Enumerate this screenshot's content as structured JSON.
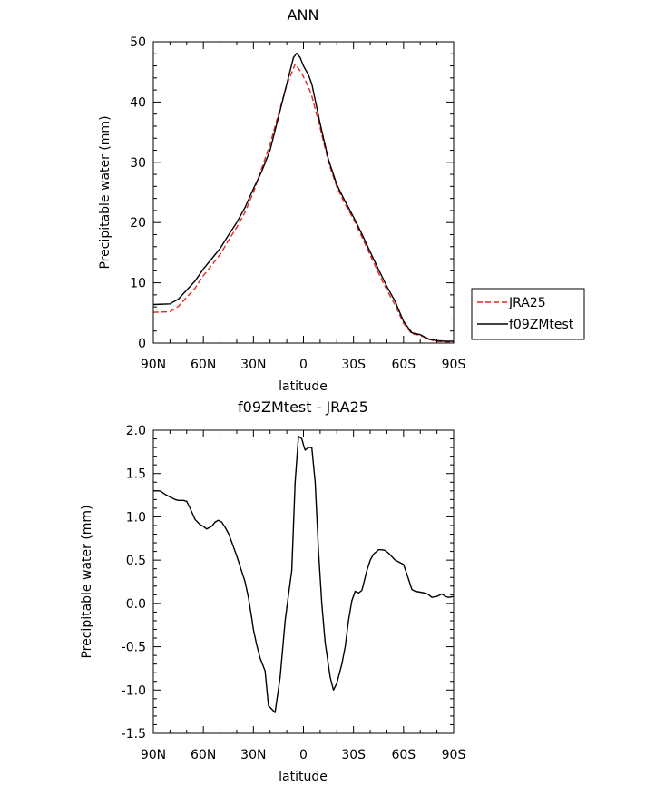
{
  "chart_data": [
    {
      "type": "line",
      "title": "ANN",
      "xlabel": "latitude",
      "ylabel": "Precipitable water (mm)",
      "x_ticks": [
        90,
        60,
        30,
        0,
        -30,
        -60,
        -90
      ],
      "x_tick_labels": [
        "90N",
        "60N",
        "30N",
        "0",
        "30S",
        "60S",
        "90S"
      ],
      "xlim": [
        90,
        -90
      ],
      "ylim": [
        0,
        50
      ],
      "y_ticks": [
        0,
        10,
        20,
        30,
        40,
        50
      ],
      "y_tick_labels": [
        "0",
        "10",
        "20",
        "30",
        "40",
        "50"
      ],
      "legend_position": "right",
      "series": [
        {
          "name": "JRA25",
          "color": "#e8261f",
          "dash": "dashed",
          "x": [
            90,
            80,
            75,
            70,
            65,
            60,
            55,
            50,
            45,
            40,
            35,
            30,
            25,
            20,
            15,
            10,
            5,
            2,
            0,
            -3,
            -5,
            -10,
            -15,
            -20,
            -25,
            -30,
            -35,
            -40,
            -45,
            -50,
            -55,
            -60,
            -65,
            -70,
            -75,
            -80,
            -85,
            -88,
            -90
          ],
          "y": [
            5.1,
            5.2,
            6.1,
            7.6,
            9.1,
            11.2,
            12.9,
            14.7,
            17.0,
            19.2,
            21.7,
            25.0,
            29.0,
            33.0,
            38.0,
            42.8,
            46.3,
            45.2,
            44.2,
            42.5,
            41.0,
            35.7,
            30.0,
            25.9,
            23.0,
            20.6,
            17.6,
            14.6,
            11.6,
            8.8,
            6.3,
            3.3,
            1.5,
            1.3,
            0.6,
            0.3,
            0.2,
            0.2,
            0.2
          ]
        },
        {
          "name": "f09ZMtest",
          "color": "#000000",
          "dash": "solid",
          "x": [
            90,
            80,
            75,
            70,
            65,
            60,
            55,
            50,
            45,
            40,
            35,
            30,
            25,
            20,
            15,
            10,
            6,
            4,
            2,
            0,
            -3,
            -5,
            -10,
            -15,
            -20,
            -25,
            -30,
            -35,
            -40,
            -45,
            -50,
            -55,
            -60,
            -65,
            -70,
            -75,
            -80,
            -85,
            -88,
            -90
          ],
          "y": [
            6.4,
            6.5,
            7.3,
            8.8,
            10.3,
            12.3,
            14.0,
            15.7,
            17.9,
            20.0,
            22.5,
            25.6,
            28.5,
            32.0,
            37.5,
            43.0,
            47.4,
            48.1,
            47.4,
            46.0,
            44.5,
            43.0,
            36.4,
            30.4,
            26.3,
            23.5,
            20.9,
            18.1,
            15.1,
            12.2,
            9.4,
            6.9,
            3.6,
            1.7,
            1.4,
            0.7,
            0.4,
            0.3,
            0.3,
            0.3
          ]
        }
      ]
    },
    {
      "type": "line",
      "title": "f09ZMtest - JRA25",
      "xlabel": "latitude",
      "ylabel": "Precipitable water (mm)",
      "x_ticks": [
        90,
        60,
        30,
        0,
        -30,
        -60,
        -90
      ],
      "x_tick_labels": [
        "90N",
        "60N",
        "30N",
        "0",
        "30S",
        "60S",
        "90S"
      ],
      "xlim": [
        90,
        -90
      ],
      "ylim": [
        -1.5,
        2.0
      ],
      "y_ticks": [
        -1.5,
        -1.0,
        -0.5,
        0.0,
        0.5,
        1.0,
        1.5,
        2.0
      ],
      "y_tick_labels": [
        "-1.5",
        "-1.0",
        "-0.5",
        "0.0",
        "0.5",
        "1.0",
        "1.5",
        "2.0"
      ],
      "series": [
        {
          "color": "#000000",
          "dash": "solid",
          "x": [
            90,
            86,
            83,
            80,
            77,
            75,
            72,
            70,
            68,
            65,
            62,
            60,
            58,
            55,
            53,
            51,
            49,
            47,
            45,
            43,
            40,
            38,
            35,
            33,
            31,
            30,
            28,
            26,
            23,
            21,
            20,
            17,
            14,
            11,
            9,
            7,
            5,
            3,
            1,
            0,
            -1,
            -3,
            -5,
            -7,
            -9,
            -11,
            -13,
            -16,
            -18,
            -20,
            -23,
            -25,
            -27,
            -29,
            -31,
            -33,
            -35,
            -38,
            -40,
            -42,
            -45,
            -47,
            -49,
            -51,
            -55,
            -58,
            -60,
            -63,
            -65,
            -67,
            -70,
            -73,
            -75,
            -77,
            -80,
            -83,
            -85,
            -87,
            -90
          ],
          "y": [
            1.3,
            1.3,
            1.26,
            1.23,
            1.2,
            1.19,
            1.19,
            1.18,
            1.1,
            0.97,
            0.91,
            0.89,
            0.86,
            0.89,
            0.94,
            0.96,
            0.94,
            0.88,
            0.81,
            0.71,
            0.55,
            0.43,
            0.25,
            0.07,
            -0.17,
            -0.3,
            -0.48,
            -0.63,
            -0.78,
            -1.18,
            -1.2,
            -1.26,
            -0.85,
            -0.2,
            0.1,
            0.38,
            1.4,
            1.93,
            1.9,
            1.83,
            1.77,
            1.8,
            1.8,
            1.4,
            0.6,
            0.0,
            -0.45,
            -0.85,
            -1.0,
            -0.92,
            -0.7,
            -0.5,
            -0.2,
            0.03,
            0.14,
            0.12,
            0.15,
            0.38,
            0.5,
            0.57,
            0.62,
            0.62,
            0.61,
            0.58,
            0.5,
            0.47,
            0.45,
            0.28,
            0.16,
            0.14,
            0.13,
            0.12,
            0.1,
            0.07,
            0.08,
            0.11,
            0.08,
            0.07,
            0.08
          ]
        }
      ]
    }
  ]
}
